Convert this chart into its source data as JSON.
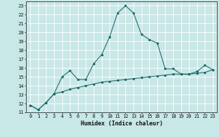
{
  "title": "",
  "xlabel": "Humidex (Indice chaleur)",
  "ylabel": "",
  "bg_color": "#c8e8e8",
  "grid_color": "#ffffff",
  "line_color": "#1a6b6b",
  "xlim": [
    -0.5,
    23.5
  ],
  "ylim": [
    11,
    23.5
  ],
  "yticks": [
    11,
    12,
    13,
    14,
    15,
    16,
    17,
    18,
    19,
    20,
    21,
    22,
    23
  ],
  "xticks": [
    0,
    1,
    2,
    3,
    4,
    5,
    6,
    7,
    8,
    9,
    10,
    11,
    12,
    13,
    14,
    15,
    16,
    17,
    18,
    19,
    20,
    21,
    22,
    23
  ],
  "curve1_x": [
    0,
    1,
    2,
    3,
    4,
    5,
    6,
    7,
    8,
    9,
    10,
    11,
    12,
    13,
    14,
    15,
    16,
    17,
    18,
    19,
    20,
    21,
    22,
    23
  ],
  "curve1_y": [
    11.8,
    11.3,
    12.1,
    13.1,
    15.0,
    15.7,
    14.7,
    14.7,
    16.5,
    17.5,
    19.5,
    22.2,
    23.0,
    22.2,
    19.8,
    19.2,
    18.8,
    15.9,
    15.9,
    15.3,
    15.3,
    15.6,
    16.3,
    15.8
  ],
  "curve2_x": [
    0,
    1,
    2,
    3,
    4,
    5,
    6,
    7,
    8,
    9,
    10,
    11,
    12,
    13,
    14,
    15,
    16,
    17,
    18,
    19,
    20,
    21,
    22,
    23
  ],
  "curve2_y": [
    11.8,
    11.3,
    12.1,
    13.1,
    13.3,
    13.6,
    13.8,
    14.0,
    14.2,
    14.4,
    14.5,
    14.6,
    14.7,
    14.8,
    14.9,
    15.0,
    15.1,
    15.2,
    15.3,
    15.3,
    15.3,
    15.4,
    15.5,
    15.8
  ],
  "tick_fontsize": 5.0,
  "xlabel_fontsize": 6.0
}
